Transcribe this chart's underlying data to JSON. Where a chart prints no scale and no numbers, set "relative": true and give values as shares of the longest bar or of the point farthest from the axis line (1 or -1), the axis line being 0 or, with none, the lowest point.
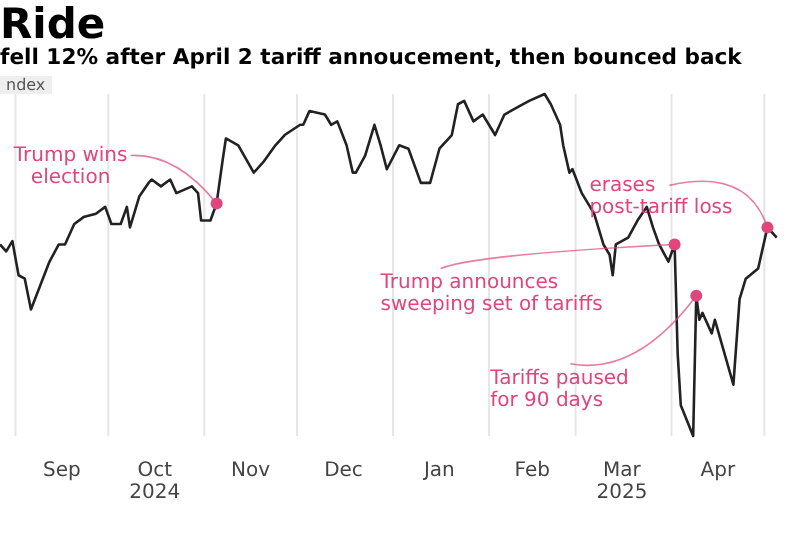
{
  "chart_data": {
    "type": "line",
    "title": "Ride",
    "subtitle": "fell 12% after April 2 tariff annoucement, then bounced back",
    "ylabel": "ndex",
    "relative": true,
    "grid": "x",
    "legend": false,
    "marker": "none",
    "line_style": "solid",
    "xlim": [
      "2024-08-27",
      "2025-05-08"
    ],
    "xticks": [
      {
        "value": "2024-09-01",
        "label": null
      },
      {
        "value": "2024-09-16",
        "label": "Sep"
      },
      {
        "value": "2024-10-01",
        "label": null
      },
      {
        "value": "2024-10-16",
        "label": "Oct\n2024"
      },
      {
        "value": "2024-11-01",
        "label": null
      },
      {
        "value": "2024-11-16",
        "label": "Nov"
      },
      {
        "value": "2024-12-01",
        "label": null
      },
      {
        "value": "2024-12-16",
        "label": "Dec"
      },
      {
        "value": "2025-01-01",
        "label": null
      },
      {
        "value": "2025-01-16",
        "label": "Jan"
      },
      {
        "value": "2025-02-01",
        "label": null
      },
      {
        "value": "2025-02-15",
        "label": "Feb"
      },
      {
        "value": "2025-03-01",
        "label": null
      },
      {
        "value": "2025-03-16",
        "label": "Mar\n2025"
      },
      {
        "value": "2025-04-01",
        "label": null
      },
      {
        "value": "2025-04-16",
        "label": "Apr"
      },
      {
        "value": "2025-05-01",
        "label": null
      }
    ],
    "x": [
      "2024-08-27",
      "2024-08-29",
      "2024-08-31",
      "2024-09-02",
      "2024-09-04",
      "2024-09-06",
      "2024-09-09",
      "2024-09-12",
      "2024-09-15",
      "2024-09-17",
      "2024-09-20",
      "2024-09-23",
      "2024-09-27",
      "2024-09-30",
      "2024-10-02",
      "2024-10-05",
      "2024-10-07",
      "2024-10-08",
      "2024-10-11",
      "2024-10-14",
      "2024-10-15",
      "2024-10-18",
      "2024-10-21",
      "2024-10-23",
      "2024-10-28",
      "2024-10-30",
      "2024-10-31",
      "2024-11-03",
      "2024-11-05",
      "2024-11-07",
      "2024-11-08",
      "2024-11-12",
      "2024-11-17",
      "2024-11-20",
      "2024-11-24",
      "2024-11-27",
      "2024-12-02",
      "2024-12-03",
      "2024-12-05",
      "2024-12-10",
      "2024-12-12",
      "2024-12-14",
      "2024-12-17",
      "2024-12-19",
      "2024-12-20",
      "2024-12-23",
      "2024-12-26",
      "2024-12-28",
      "2024-12-30",
      "2025-01-03",
      "2025-01-06",
      "2025-01-10",
      "2025-01-13",
      "2025-01-16",
      "2025-01-20",
      "2025-01-22",
      "2025-01-24",
      "2025-01-27",
      "2025-01-30",
      "2025-02-03",
      "2025-02-06",
      "2025-02-10",
      "2025-02-14",
      "2025-02-19",
      "2025-02-21",
      "2025-02-24",
      "2025-02-25",
      "2025-02-27",
      "2025-02-28",
      "2025-03-03",
      "2025-03-05",
      "2025-03-07",
      "2025-03-10",
      "2025-03-12",
      "2025-03-13",
      "2025-03-14",
      "2025-03-18",
      "2025-03-21",
      "2025-03-24",
      "2025-03-26",
      "2025-03-28",
      "2025-03-31",
      "2025-04-02",
      "2025-04-03",
      "2025-04-04",
      "2025-04-08",
      "2025-04-09",
      "2025-04-10",
      "2025-04-11",
      "2025-04-14",
      "2025-04-15",
      "2025-04-21",
      "2025-04-23",
      "2025-04-25",
      "2025-04-29",
      "2025-05-02",
      "2025-05-05"
    ],
    "series": [
      {
        "color": "#222222",
        "values": [
          0.56,
          0.54,
          0.57,
          0.47,
          0.46,
          0.37,
          0.44,
          0.51,
          0.56,
          0.56,
          0.62,
          0.64,
          0.65,
          0.67,
          0.62,
          0.62,
          0.67,
          0.61,
          0.7,
          0.74,
          0.75,
          0.73,
          0.75,
          0.71,
          0.73,
          0.71,
          0.63,
          0.63,
          0.68,
          0.81,
          0.87,
          0.85,
          0.77,
          0.8,
          0.85,
          0.88,
          0.91,
          0.91,
          0.95,
          0.94,
          0.91,
          0.92,
          0.85,
          0.77,
          0.77,
          0.82,
          0.91,
          0.85,
          0.78,
          0.85,
          0.84,
          0.74,
          0.74,
          0.84,
          0.88,
          0.97,
          0.98,
          0.92,
          0.94,
          0.88,
          0.94,
          0.96,
          0.98,
          1,
          0.97,
          0.91,
          0.85,
          0.77,
          0.78,
          0.71,
          0.68,
          0.65,
          0.56,
          0.53,
          0.47,
          0.56,
          0.58,
          0.63,
          0.67,
          0.61,
          0.56,
          0.51,
          0.56,
          0.24,
          0.09,
          0,
          0.41,
          0.34,
          0.36,
          0.3,
          0.34,
          0.15,
          0.4,
          0.46,
          0.49,
          0.61,
          0.58
        ]
      }
    ],
    "annotations": [
      {
        "text": "Trump wins\nelection",
        "x": "2024-11-05",
        "y": 0.68
      },
      {
        "text": "Trump announces\nsweeping set of tariffs",
        "x": "2025-04-02",
        "y": 0.56
      },
      {
        "text": "Tariffs paused\nfor 90 days",
        "x": "2025-04-09",
        "y": 0.41
      },
      {
        "text": "erases\npost-tariff loss",
        "x": "2025-05-02",
        "y": 0.61
      }
    ]
  }
}
